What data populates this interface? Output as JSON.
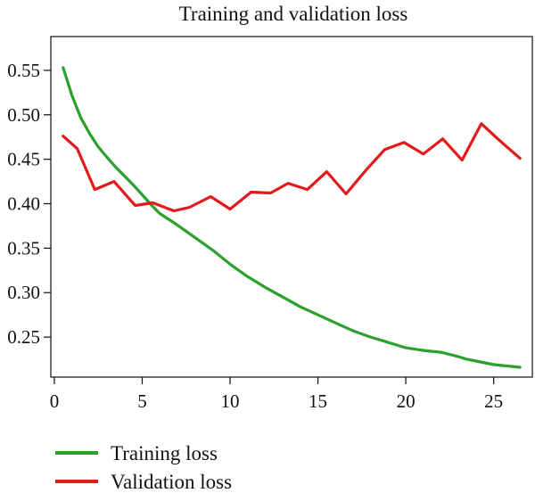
{
  "chart_data": {
    "type": "line",
    "title": "Training and validation loss",
    "xlabel": "",
    "ylabel": "",
    "xlim": [
      -0.2,
      27.2
    ],
    "ylim": [
      0.205,
      0.588
    ],
    "x_ticks": [
      0,
      5,
      10,
      15,
      20,
      25
    ],
    "y_ticks": [
      0.25,
      0.3,
      0.35,
      0.4,
      0.45,
      0.5,
      0.55
    ],
    "y_tick_labels": [
      "0.25",
      "0.30",
      "0.35",
      "0.40",
      "0.45",
      "0.50",
      "0.55"
    ],
    "x_tick_labels": [
      "0",
      "5",
      "10",
      "15",
      "20",
      "25"
    ],
    "grid": false,
    "legend_position": "bottom-left",
    "series": [
      {
        "name": "Training loss",
        "color": "#2ca02c",
        "x": [
          0.5,
          1.0,
          1.5,
          2.0,
          2.5,
          3.0,
          3.5,
          4.0,
          4.5,
          5.0,
          5.5,
          6.0,
          7.0,
          8.0,
          9.0,
          10.0,
          11.0,
          12.0,
          13.0,
          14.0,
          15.0,
          16.0,
          17.0,
          18.0,
          19.0,
          20.0,
          21.0,
          22.0,
          23.0,
          23.5,
          24.0,
          25.0,
          26.0,
          26.5
        ],
        "y": [
          0.553,
          0.522,
          0.497,
          0.479,
          0.464,
          0.452,
          0.441,
          0.431,
          0.421,
          0.41,
          0.399,
          0.389,
          0.376,
          0.362,
          0.348,
          0.332,
          0.318,
          0.306,
          0.295,
          0.284,
          0.275,
          0.266,
          0.257,
          0.25,
          0.244,
          0.238,
          0.235,
          0.233,
          0.228,
          0.225,
          0.223,
          0.219,
          0.217,
          0.216
        ]
      },
      {
        "name": "Validation loss",
        "color": "#e31a1c",
        "x": [
          0.5,
          1.3,
          2.3,
          3.4,
          4.6,
          5.6,
          6.8,
          7.7,
          8.9,
          10.0,
          11.2,
          12.3,
          13.3,
          14.4,
          15.5,
          16.6,
          17.7,
          18.8,
          19.9,
          21.0,
          22.1,
          23.2,
          24.3,
          25.4,
          26.5
        ],
        "y": [
          0.476,
          0.462,
          0.416,
          0.425,
          0.398,
          0.401,
          0.392,
          0.396,
          0.408,
          0.394,
          0.413,
          0.412,
          0.423,
          0.416,
          0.436,
          0.411,
          0.437,
          0.461,
          0.469,
          0.456,
          0.473,
          0.449,
          0.49,
          0.47,
          0.451
        ]
      }
    ]
  }
}
